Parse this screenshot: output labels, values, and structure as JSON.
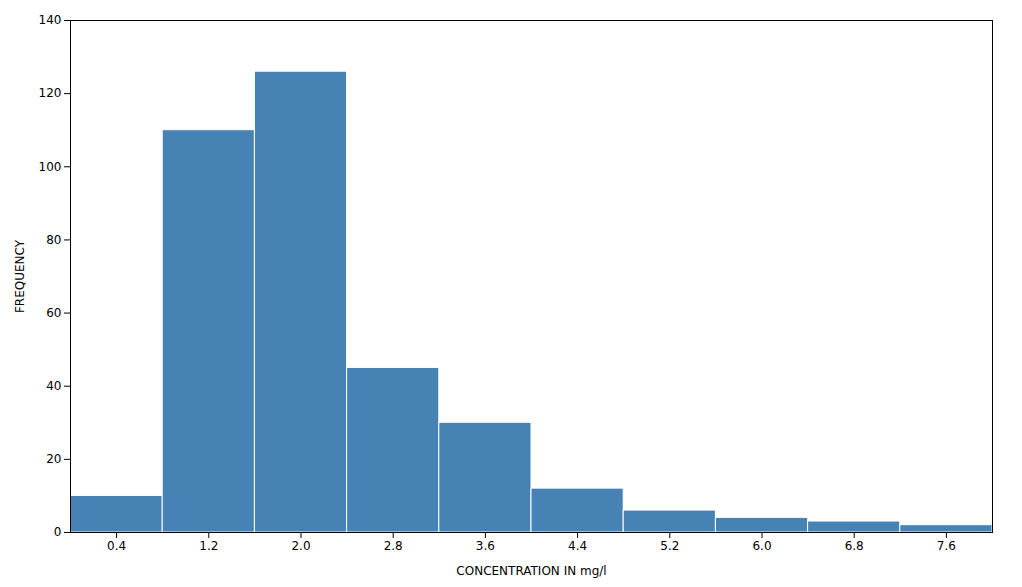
{
  "chart_data": {
    "type": "histogram",
    "bins": [
      0.0,
      0.8,
      1.6,
      2.4,
      3.2,
      4.0,
      4.8,
      5.6,
      6.4,
      7.2,
      8.0
    ],
    "values": [
      10,
      110,
      126,
      45,
      30,
      12,
      6,
      4,
      3,
      2
    ],
    "xlabel": "CONCENTRATION IN mg/l",
    "ylabel": "FREQUENCY",
    "xlim": [
      0.0,
      8.0
    ],
    "ylim": [
      0,
      140
    ],
    "xticks": [
      0.4,
      1.2,
      {
        "value": 2.0,
        "label": "2.0"
      },
      2.8,
      3.6,
      4.4,
      5.2,
      {
        "value": 6.0,
        "label": "6.0"
      },
      6.8,
      7.6
    ],
    "yticks": [
      0,
      20,
      40,
      60,
      80,
      100,
      120,
      140
    ],
    "grid": false
  }
}
